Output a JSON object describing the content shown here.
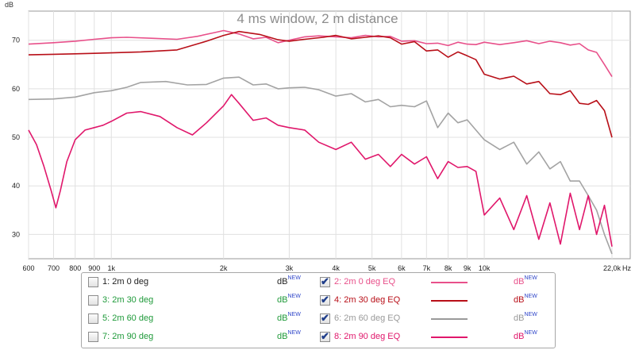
{
  "chart_data": {
    "type": "line",
    "title": "4 ms window, 2 m distance",
    "ylabel": "dB",
    "xunit": "Hz",
    "xscale": "log",
    "xlim": [
      600,
      22000
    ],
    "ylim": [
      25,
      76
    ],
    "x_ticks": [
      "600",
      "700",
      "800",
      "900",
      "1k",
      "2k",
      "3k",
      "4k",
      "5k",
      "6k",
      "7k",
      "8k",
      "9k",
      "10k",
      "22,0k"
    ],
    "y_ticks": [
      "70",
      "60",
      "50",
      "40",
      "30"
    ],
    "grid": true,
    "series": [
      {
        "name": "2: 2m 0 deg EQ",
        "color": "#e8508a",
        "x": [
          600,
          700,
          800,
          900,
          1000,
          1100,
          1300,
          1500,
          1700,
          1900,
          2000,
          2200,
          2400,
          2600,
          2800,
          3000,
          3300,
          3600,
          4000,
          4400,
          4800,
          5200,
          5600,
          6000,
          6500,
          7000,
          7500,
          8000,
          8500,
          9000,
          9500,
          10000,
          11000,
          12000,
          13000,
          14000,
          15000,
          16000,
          17000,
          18000,
          19000,
          20000,
          21000,
          22000
        ],
        "y": [
          69.2,
          69.5,
          69.8,
          70.2,
          70.5,
          70.6,
          70.4,
          70.2,
          70.8,
          71.6,
          72.0,
          71.3,
          70.3,
          70.6,
          69.5,
          70.0,
          70.7,
          70.9,
          70.7,
          70.5,
          71.0,
          70.7,
          70.8,
          69.8,
          69.9,
          69.3,
          69.4,
          68.9,
          69.6,
          69.2,
          69.1,
          69.6,
          69.1,
          69.5,
          69.9,
          69.3,
          69.8,
          69.5,
          69.0,
          69.3,
          68.0,
          67.5,
          65.0,
          62.5
        ]
      },
      {
        "name": "4: 2m 30 deg EQ",
        "color": "#b80f18",
        "x": [
          600,
          700,
          800,
          900,
          1000,
          1200,
          1500,
          1800,
          2000,
          2200,
          2500,
          2800,
          3000,
          3300,
          3700,
          4000,
          4400,
          4800,
          5200,
          5600,
          6000,
          6500,
          7000,
          7500,
          8000,
          8500,
          9000,
          9500,
          10000,
          11000,
          12000,
          13000,
          14000,
          15000,
          16000,
          17000,
          18000,
          19000,
          20000,
          21000,
          22000
        ],
        "y": [
          67.0,
          67.1,
          67.2,
          67.3,
          67.4,
          67.6,
          68.0,
          69.8,
          71.0,
          71.8,
          71.2,
          70.1,
          69.8,
          70.2,
          70.6,
          71.0,
          70.3,
          70.6,
          70.9,
          70.5,
          69.2,
          69.7,
          67.8,
          68.0,
          66.5,
          67.6,
          66.8,
          66.0,
          63.0,
          62.0,
          62.6,
          61.0,
          61.5,
          59.0,
          58.8,
          59.6,
          57.0,
          56.8,
          57.6,
          55.5,
          50.0
        ]
      },
      {
        "name": "6: 2m 60 deg EQ",
        "color": "#a3a3a3",
        "x": [
          600,
          700,
          800,
          900,
          1000,
          1100,
          1200,
          1400,
          1600,
          1800,
          2000,
          2200,
          2400,
          2600,
          2800,
          3000,
          3300,
          3600,
          4000,
          4400,
          4800,
          5200,
          5600,
          6000,
          6500,
          7000,
          7500,
          8000,
          8500,
          9000,
          9500,
          10000,
          11000,
          12000,
          13000,
          14000,
          15000,
          16000,
          17000,
          18000,
          19000,
          20000,
          21000,
          22000
        ],
        "y": [
          57.8,
          57.9,
          58.3,
          59.2,
          59.6,
          60.3,
          61.3,
          61.5,
          60.8,
          60.9,
          62.2,
          62.4,
          60.8,
          61.0,
          60.0,
          60.2,
          60.3,
          59.8,
          58.5,
          59.0,
          57.3,
          57.8,
          56.3,
          56.6,
          56.3,
          57.5,
          52.0,
          55.0,
          53.0,
          53.6,
          51.5,
          49.5,
          47.5,
          49.0,
          44.5,
          47.0,
          43.5,
          45.0,
          41.0,
          41.0,
          38.0,
          35.0,
          30.0,
          26.0
        ]
      },
      {
        "name": "8: 2m 90 deg EQ",
        "color": "#e0176b",
        "x": [
          600,
          630,
          660,
          690,
          710,
          730,
          760,
          800,
          850,
          900,
          950,
          1000,
          1100,
          1200,
          1350,
          1500,
          1650,
          1800,
          2000,
          2100,
          2200,
          2400,
          2600,
          2800,
          3000,
          3300,
          3600,
          4000,
          4400,
          4800,
          5200,
          5600,
          6000,
          6500,
          7000,
          7500,
          8000,
          8500,
          9000,
          9500,
          10000,
          11000,
          12000,
          13000,
          14000,
          15000,
          16000,
          17000,
          18000,
          19000,
          20000,
          21000,
          22000
        ],
        "y": [
          51.5,
          48.5,
          44.0,
          39.0,
          35.5,
          39.0,
          45.0,
          49.5,
          51.5,
          52.0,
          52.5,
          53.3,
          55.0,
          55.3,
          54.3,
          52.0,
          50.5,
          53.0,
          56.5,
          58.8,
          57.0,
          53.5,
          54.0,
          52.5,
          52.0,
          51.5,
          49.0,
          47.5,
          49.0,
          45.5,
          46.5,
          44.0,
          46.5,
          44.5,
          46.0,
          41.5,
          45.0,
          43.8,
          44.0,
          43.0,
          34.0,
          37.5,
          31.0,
          38.0,
          29.0,
          36.5,
          28.0,
          38.5,
          31.0,
          38.0,
          30.0,
          36.0,
          27.5
        ]
      }
    ]
  },
  "legend": {
    "db_label": "dB",
    "db_sup": "NEW",
    "items": [
      {
        "label": "1: 2m 0 deg",
        "color": "#222222",
        "checked": false
      },
      {
        "label": "2: 2m 0 deg EQ",
        "color": "#e8508a",
        "checked": true
      },
      {
        "label": "3: 2m 30 deg",
        "color": "#1f9a3a",
        "checked": false
      },
      {
        "label": "4: 2m 30 deg EQ",
        "color": "#b80f18",
        "checked": true
      },
      {
        "label": "5: 2m 60 deg",
        "color": "#1f9a3a",
        "checked": false
      },
      {
        "label": "6: 2m 60 deg EQ",
        "color": "#9a9a9a",
        "checked": true
      },
      {
        "label": "7: 2m 90 deg",
        "color": "#1f9a3a",
        "checked": false
      },
      {
        "label": "8: 2m 90 deg EQ",
        "color": "#e0176b",
        "checked": true
      }
    ]
  }
}
